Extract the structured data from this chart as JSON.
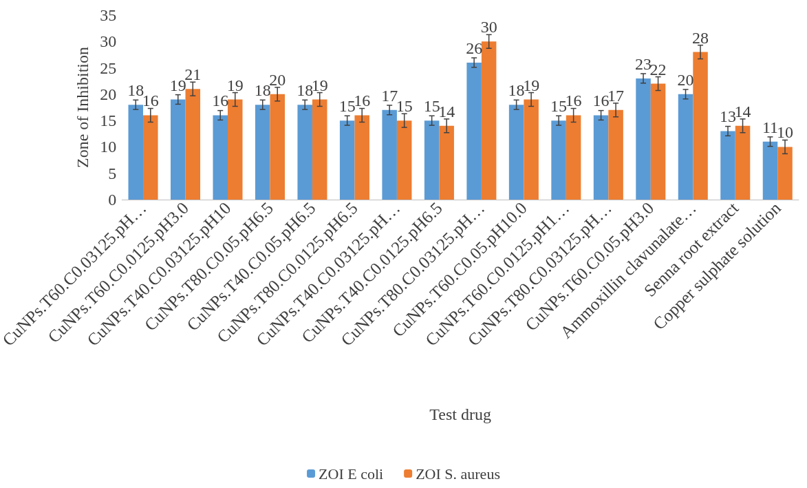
{
  "chart_data": {
    "type": "bar",
    "xlabel": "Test drug",
    "ylabel": "Zone of Inhibition",
    "categories": [
      "CuNPs.T60.C0.03125.pH…",
      "CuNPs.T60.C0.0125.pH3.0",
      "CuNPs.T40.C0.03125.pH10",
      "CuNPs.T80.C0.05.pH6.5",
      "CuNPs.T40.C0.05.pH6.5",
      "CuNPs.T80.C0.0125.pH6.5",
      "CuNPs.T40.C0.03125.pH…",
      "CuNPs.T40.C0.0125.pH6.5",
      "CuNPs.T80.C0.03125.pH…",
      "CuNPs.T60.C0.05.pH10.0",
      "CuNPs.T60.C0.0125.pH1…",
      "CuNPs.T80.C0.03125.pH…",
      "CuNPs.T60.C0.05.pH3.0",
      "Ammoxillin clavunalate…",
      "Senna root extract",
      "Copper sulphate solution"
    ],
    "series": [
      {
        "name": "ZOI E coli",
        "color": "#5b9bd5",
        "values": [
          18,
          19,
          16,
          18,
          18,
          15,
          17,
          15,
          26,
          18,
          15,
          16,
          23,
          20,
          13,
          11
        ],
        "errors": [
          0.9,
          0.9,
          0.9,
          0.9,
          0.9,
          0.9,
          0.9,
          0.9,
          0.9,
          0.9,
          0.9,
          0.9,
          0.9,
          0.9,
          0.9,
          0.9
        ]
      },
      {
        "name": "ZOI S. aureus",
        "color": "#ed7d31",
        "values": [
          16,
          21,
          19,
          20,
          19,
          16,
          15,
          14,
          30,
          19,
          16,
          17,
          22,
          28,
          14,
          10
        ],
        "errors": [
          1.3,
          1.3,
          1.3,
          1.3,
          1.3,
          1.3,
          1.3,
          1.3,
          1.3,
          1.3,
          1.3,
          1.3,
          1.3,
          1.3,
          1.3,
          1.3
        ]
      }
    ],
    "ylim": [
      0,
      35
    ],
    "yticks": [
      0,
      5,
      10,
      15,
      20,
      25,
      30,
      35
    ],
    "grid": false,
    "legend": "bottom",
    "data_labels": true
  }
}
